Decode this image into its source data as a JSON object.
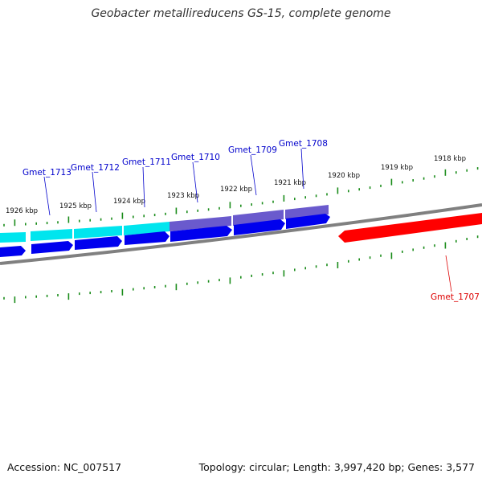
{
  "title": "Geobacter metallireducens GS-15, complete genome",
  "footer": {
    "accession": "Accession: NC_007517",
    "summary": "Topology: circular; Length: 3,997,420 bp; Genes: 3,577"
  },
  "colors": {
    "backbone": "#808080",
    "tick": "#1a8c1a",
    "gene_forward": "#0000ee",
    "gene_reverse": "#ff0000",
    "cds_cyan": "#00e5ee",
    "cds_purple": "#6a5acd",
    "label_blue": "#0000cc",
    "label_red": "#dd0000"
  },
  "scale_labels": [
    {
      "text": "1926 kbp"
    },
    {
      "text": "1925 kbp"
    },
    {
      "text": "1924 kbp"
    },
    {
      "text": "1923 kbp"
    },
    {
      "text": "1922 kbp"
    },
    {
      "text": "1921 kbp"
    },
    {
      "text": "1920 kbp"
    },
    {
      "text": "1919 kbp"
    },
    {
      "text": "1918 kbp"
    }
  ],
  "genes": [
    {
      "name": "Gmet_1713",
      "strand": "forward"
    },
    {
      "name": "Gmet_1712",
      "strand": "forward"
    },
    {
      "name": "Gmet_1711",
      "strand": "forward"
    },
    {
      "name": "Gmet_1710",
      "strand": "forward"
    },
    {
      "name": "Gmet_1709",
      "strand": "forward"
    },
    {
      "name": "Gmet_1708",
      "strand": "forward"
    },
    {
      "name": "Gmet_1707",
      "strand": "reverse"
    }
  ]
}
